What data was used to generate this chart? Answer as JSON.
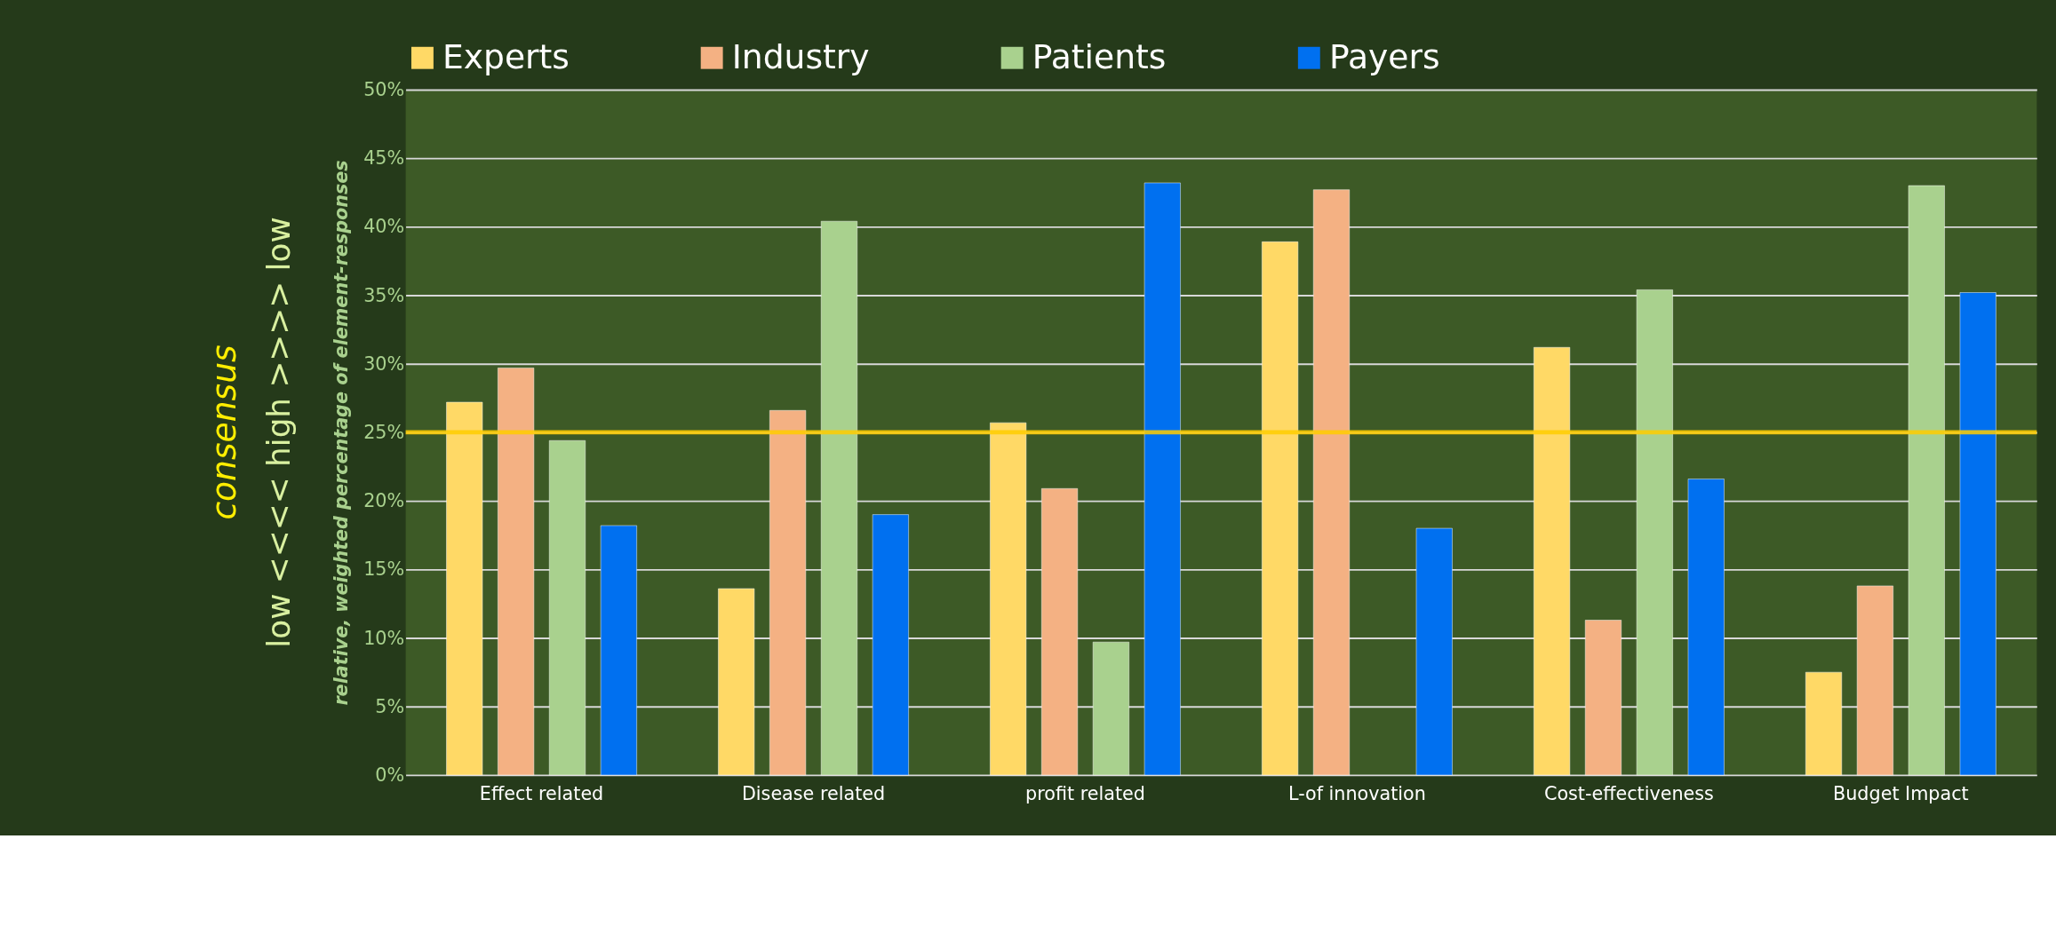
{
  "chart_data": {
    "type": "bar",
    "categories": [
      "Effect related",
      "Disease related",
      "profit related",
      "L-of innovation",
      "Cost-effectiveness",
      "Budget Impact"
    ],
    "series": [
      {
        "name": "Experts",
        "color": "#ffd966",
        "values": [
          27.2,
          13.6,
          25.7,
          38.9,
          31.2,
          7.5
        ]
      },
      {
        "name": "Industry",
        "color": "#f4b183",
        "values": [
          29.7,
          26.6,
          20.9,
          42.7,
          11.3,
          13.8
        ]
      },
      {
        "name": "Patients",
        "color": "#a9d18e",
        "values": [
          24.4,
          40.4,
          9.7,
          null,
          35.4,
          43.0
        ]
      },
      {
        "name": "Payers",
        "color": "#0070f0",
        "values": [
          18.2,
          19.0,
          43.2,
          18.0,
          21.6,
          35.2
        ]
      }
    ],
    "ylim": [
      0,
      50
    ],
    "yticks": [
      {
        "value": 0,
        "label": "0%"
      },
      {
        "value": 5,
        "label": "5%"
      },
      {
        "value": 10,
        "label": "10%"
      },
      {
        "value": 15,
        "label": "15%"
      },
      {
        "value": 20,
        "label": "20%"
      },
      {
        "value": 25,
        "label": "25%"
      },
      {
        "value": 30,
        "label": "30%"
      },
      {
        "value": 35,
        "label": "35%"
      },
      {
        "value": 40,
        "label": "40%"
      },
      {
        "value": 45,
        "label": "45%"
      },
      {
        "value": 50,
        "label": "50%"
      }
    ],
    "ylabel": "relative, weighted percentage of element-responses",
    "annotations": [
      "consensus",
      "low <<<<     high     >>>> low"
    ],
    "ref_lines": [
      {
        "axis": "y",
        "value": 25,
        "color": "#ffcc00"
      }
    ],
    "grid": "y",
    "legend": "top"
  }
}
